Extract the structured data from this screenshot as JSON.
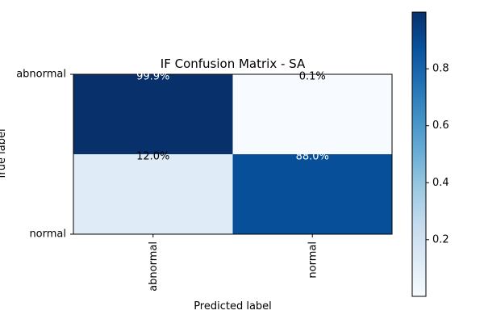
{
  "chart_data": {
    "type": "heatmap",
    "title": "IF Confusion Matrix - SA",
    "xlabel": "Predicted label",
    "ylabel": "True label",
    "row_labels": [
      "abnormal",
      "normal"
    ],
    "col_labels": [
      "abnormal",
      "normal"
    ],
    "values": [
      [
        0.999,
        0.001
      ],
      [
        0.12,
        0.88
      ]
    ],
    "cell_labels": [
      [
        "99.9%",
        "0.1%"
      ],
      [
        "12.0%",
        "88.0%"
      ]
    ],
    "colormap": "Blues",
    "colorbar": {
      "range": [
        0.001,
        0.999
      ],
      "ticks": [
        0.2,
        0.4,
        0.6,
        0.8
      ],
      "tick_labels": [
        "0.2",
        "0.4",
        "0.6",
        "0.8"
      ]
    },
    "grid": false
  }
}
